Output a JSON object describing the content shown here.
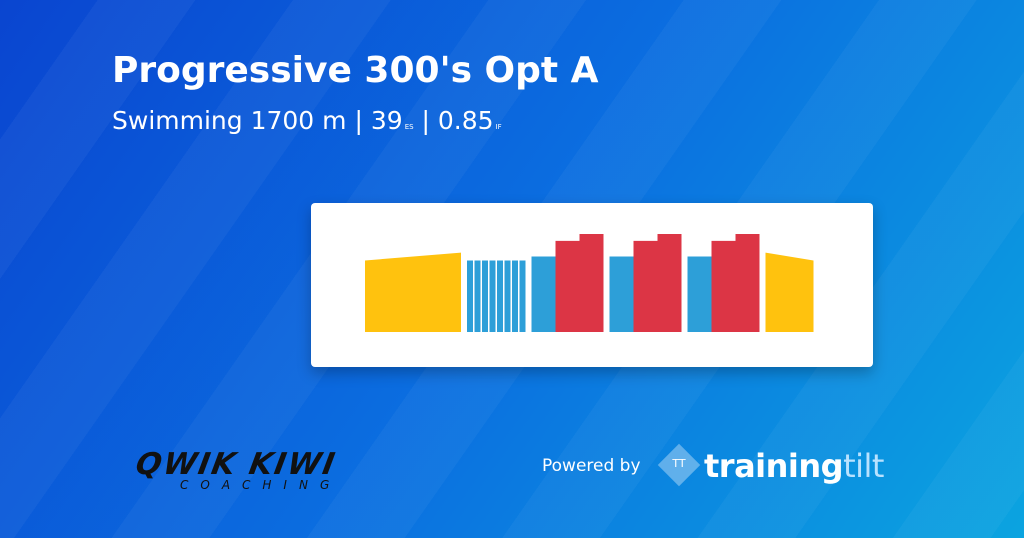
{
  "header": {
    "title": "Progressive 300's Opt A",
    "sport": "Swimming",
    "distance": "1700 m",
    "separator": "|",
    "es": "39",
    "es_label": "ES",
    "if": "0.85",
    "if_label": "IF"
  },
  "workout": {
    "distance_unit": "m",
    "intensity_unit": "%",
    "groups": [
      [
        {
          "distance": 400,
          "intensity": 73,
          "intensity_end": 81,
          "color": "#ffc20e"
        }
      ],
      [
        {
          "distance": 25,
          "intensity": 73,
          "color": "#2d9fd8"
        },
        {
          "distance": 25,
          "intensity": 73,
          "color": "#2d9fd8"
        },
        {
          "distance": 25,
          "intensity": 73,
          "color": "#2d9fd8"
        },
        {
          "distance": 25,
          "intensity": 73,
          "color": "#2d9fd8"
        },
        {
          "distance": 25,
          "intensity": 73,
          "color": "#2d9fd8"
        },
        {
          "distance": 25,
          "intensity": 73,
          "color": "#2d9fd8"
        },
        {
          "distance": 25,
          "intensity": 73,
          "color": "#2d9fd8"
        },
        {
          "distance": 25,
          "intensity": 73,
          "color": "#2d9fd8"
        }
      ],
      [
        {
          "distance": 100,
          "intensity": 77,
          "color": "#2d9fd8"
        },
        {
          "distance": 100,
          "intensity": 93,
          "color": "#dc3545"
        },
        {
          "distance": 100,
          "intensity": 100,
          "color": "#dc3545"
        }
      ],
      [
        {
          "distance": 100,
          "intensity": 77,
          "color": "#2d9fd8"
        },
        {
          "distance": 100,
          "intensity": 93,
          "color": "#dc3545"
        },
        {
          "distance": 100,
          "intensity": 100,
          "color": "#dc3545"
        }
      ],
      [
        {
          "distance": 100,
          "intensity": 77,
          "color": "#2d9fd8"
        },
        {
          "distance": 100,
          "intensity": 93,
          "color": "#dc3545"
        },
        {
          "distance": 100,
          "intensity": 100,
          "color": "#dc3545"
        }
      ],
      [
        {
          "distance": 200,
          "intensity": 81,
          "intensity_end": 73,
          "color": "#ffc20e"
        }
      ]
    ]
  },
  "footer": {
    "coach_logo": "QWIK KIWI",
    "coach_logo_sub": "COACHING",
    "powered_by": "Powered by",
    "brand_icon": "TT",
    "brand_main": "training",
    "brand_accent": "tilt"
  }
}
